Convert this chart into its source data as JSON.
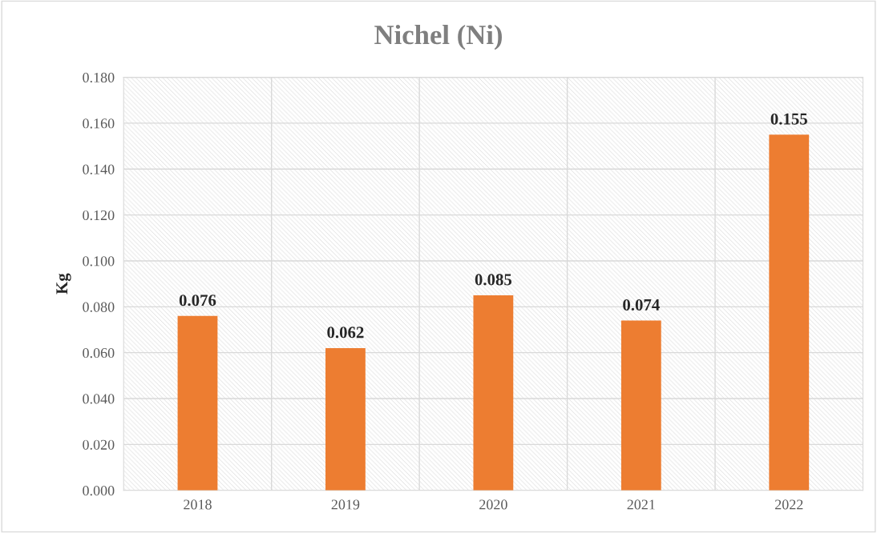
{
  "chart_data": {
    "type": "bar",
    "title": "Nichel (Ni)",
    "ylabel": "Kg",
    "categories": [
      "2018",
      "2019",
      "2020",
      "2021",
      "2022"
    ],
    "values": [
      0.076,
      0.062,
      0.085,
      0.074,
      0.155
    ],
    "color": "#ed7d31",
    "ylim": [
      0,
      0.18
    ],
    "yticks": [
      {
        "value": 0,
        "label": "0.000"
      },
      {
        "value": 0.02,
        "label": "0.020"
      },
      {
        "value": 0.04,
        "label": "0.040"
      },
      {
        "value": 0.06,
        "label": "0.060"
      },
      {
        "value": 0.08,
        "label": "0.080"
      },
      {
        "value": 0.1,
        "label": "0.100"
      },
      {
        "value": 0.12,
        "label": "0.120"
      },
      {
        "value": 0.14,
        "label": "0.140"
      },
      {
        "value": 0.16,
        "label": "0.160"
      },
      {
        "value": 0.18,
        "label": "0.180"
      }
    ],
    "data_labels": true,
    "grid": true
  }
}
